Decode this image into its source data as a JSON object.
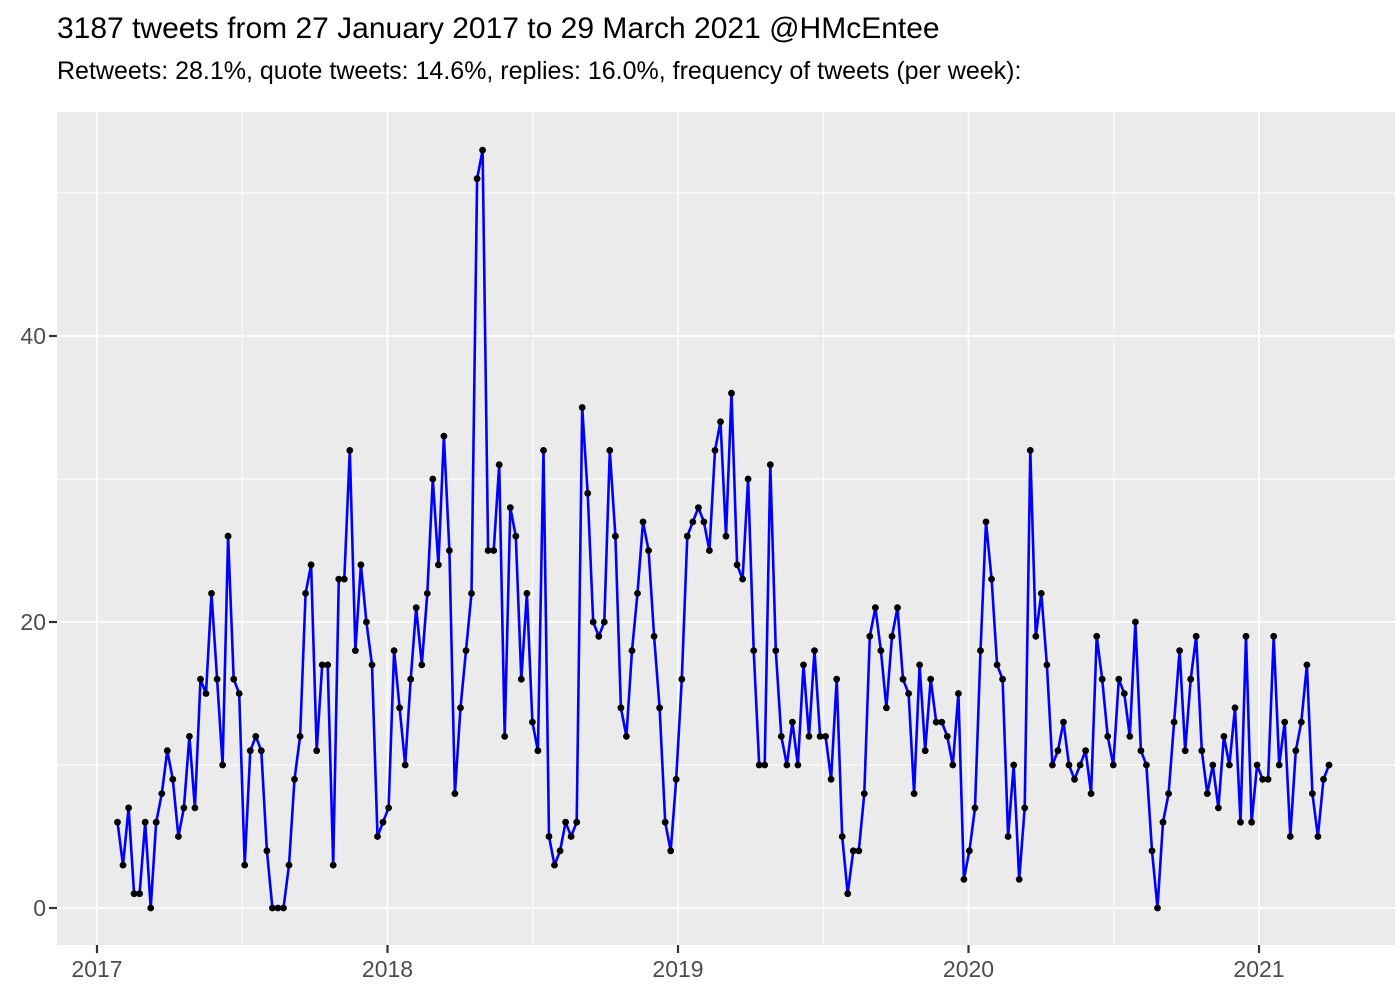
{
  "header": {
    "title": "3187 tweets from 27 January 2017 to 29 March 2021 @HMcEntee",
    "subtitle": "Retweets: 28.1%, quote tweets: 14.6%, replies: 16.0%, frequency of tweets (per week):"
  },
  "chart_data": {
    "type": "line",
    "title": "3187 tweets from 27 January 2017 to 29 March 2021 @HMcEntee",
    "subtitle": "Retweets: 28.1%, quote tweets: 14.6%, replies: 16.0%, frequency of tweets (per week):",
    "xlabel": "",
    "ylabel": "",
    "x_ticks": [
      "2017",
      "2018",
      "2019",
      "2020",
      "2021"
    ],
    "y_ticks": [
      0,
      20,
      40
    ],
    "x_range_start": "27 January 2017",
    "x_range_end": "29 March 2021",
    "frequency": "per week",
    "ylim": [
      -2.5,
      55.5
    ],
    "grid": "on",
    "legend": "none",
    "series_name": "tweets per week",
    "values": [
      6,
      3,
      7,
      1,
      1,
      6,
      0,
      6,
      8,
      11,
      9,
      5,
      7,
      12,
      7,
      16,
      15,
      22,
      16,
      10,
      26,
      16,
      15,
      3,
      11,
      12,
      11,
      4,
      0,
      0,
      0,
      3,
      9,
      12,
      22,
      24,
      11,
      17,
      17,
      3,
      23,
      23,
      32,
      18,
      24,
      20,
      17,
      5,
      6,
      7,
      18,
      14,
      10,
      16,
      21,
      17,
      22,
      30,
      24,
      33,
      25,
      8,
      14,
      18,
      22,
      51,
      53,
      25,
      25,
      31,
      12,
      28,
      26,
      16,
      22,
      13,
      11,
      32,
      5,
      3,
      4,
      6,
      5,
      6,
      35,
      29,
      20,
      19,
      20,
      32,
      26,
      14,
      12,
      18,
      22,
      27,
      25,
      19,
      14,
      6,
      4,
      9,
      16,
      26,
      27,
      28,
      27,
      25,
      32,
      34,
      26,
      36,
      24,
      23,
      30,
      18,
      10,
      10,
      31,
      18,
      12,
      10,
      13,
      10,
      17,
      12,
      18,
      12,
      12,
      9,
      16,
      5,
      1,
      4,
      4,
      8,
      19,
      21,
      18,
      14,
      19,
      21,
      16,
      15,
      8,
      17,
      11,
      16,
      13,
      13,
      12,
      10,
      15,
      2,
      4,
      7,
      18,
      27,
      23,
      17,
      16,
      5,
      10,
      2,
      7,
      32,
      19,
      22,
      17,
      10,
      11,
      13,
      10,
      9,
      10,
      11,
      8,
      19,
      16,
      12,
      10,
      16,
      15,
      12,
      20,
      11,
      10,
      4,
      0,
      6,
      8,
      13,
      18,
      11,
      16,
      19,
      11,
      8,
      10,
      7,
      12,
      10,
      14,
      6,
      19,
      6,
      10,
      9,
      9,
      19,
      10,
      13,
      5,
      11,
      13,
      17,
      8,
      5,
      9,
      10
    ],
    "line_color": "#0000FF",
    "point_color": "#000000",
    "panel_background": "#EBEBEB",
    "gridline_color": "#FFFFFF",
    "tick_label_color": "#4d4d4d",
    "tick_mark_color": "#333333"
  }
}
